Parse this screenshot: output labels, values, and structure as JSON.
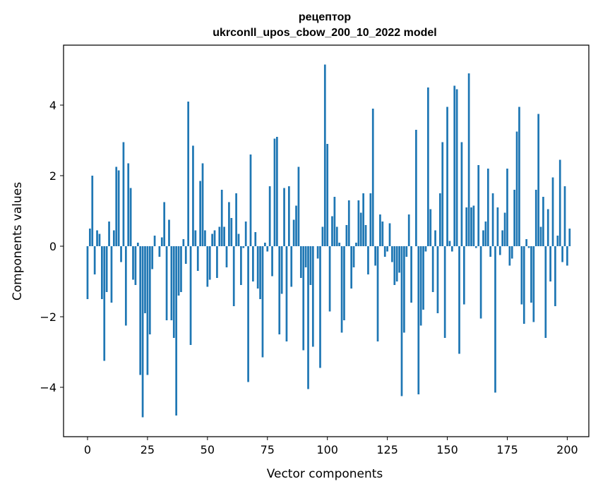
{
  "chart_data": {
    "type": "bar",
    "title": "рецептор",
    "subtitle": "ukrconll_upos_cbow_200_10_2022 model",
    "xlabel": "Vector components",
    "ylabel": "Components values",
    "xlim": [
      -10,
      209
    ],
    "ylim": [
      -5.4,
      5.7
    ],
    "x_ticks": [
      0,
      25,
      50,
      75,
      100,
      125,
      150,
      175,
      200
    ],
    "x_tick_labels": [
      "0",
      "25",
      "50",
      "75",
      "100",
      "125",
      "150",
      "175",
      "200"
    ],
    "y_ticks": [
      -4,
      -2,
      0,
      2,
      4
    ],
    "y_tick_labels": [
      "−4",
      "−2",
      "0",
      "2",
      "4"
    ],
    "grid": false,
    "bar_color": "#1f77b4",
    "values": [
      -1.5,
      0.5,
      2.0,
      -0.8,
      0.45,
      0.35,
      -1.5,
      -3.25,
      -1.3,
      0.7,
      -1.6,
      0.45,
      2.25,
      2.15,
      -0.45,
      2.95,
      -2.25,
      2.35,
      1.65,
      -0.95,
      -1.1,
      0.1,
      -3.65,
      -4.85,
      -1.9,
      -3.65,
      -2.5,
      -0.65,
      0.3,
      0.0,
      -0.3,
      0.25,
      1.25,
      -2.1,
      0.75,
      -2.1,
      -2.6,
      -4.8,
      -1.4,
      -1.3,
      0.2,
      -0.5,
      4.1,
      -2.8,
      2.85,
      0.45,
      -0.7,
      1.85,
      2.35,
      0.45,
      -1.15,
      -0.95,
      0.35,
      0.45,
      -0.9,
      0.55,
      1.6,
      0.55,
      -0.6,
      1.25,
      0.8,
      -1.7,
      1.5,
      0.35,
      -1.1,
      -0.05,
      0.7,
      -3.85,
      2.6,
      -1.0,
      0.4,
      -1.2,
      -1.5,
      -3.15,
      0.1,
      -0.15,
      1.7,
      -0.85,
      3.05,
      3.1,
      -2.5,
      -1.35,
      1.65,
      -2.7,
      1.7,
      -1.15,
      0.75,
      1.15,
      2.25,
      -0.9,
      -2.95,
      -0.6,
      -4.05,
      -1.1,
      -2.85,
      0.0,
      -0.35,
      -3.45,
      0.55,
      5.15,
      2.9,
      -1.85,
      0.85,
      1.4,
      0.55,
      0.1,
      -2.45,
      -2.1,
      0.6,
      1.3,
      -1.2,
      -0.6,
      0.1,
      1.3,
      0.95,
      1.5,
      0.6,
      -0.8,
      1.5,
      3.9,
      -0.55,
      -2.7,
      0.9,
      0.7,
      -0.3,
      -0.15,
      0.65,
      -0.45,
      -1.1,
      -1.0,
      -0.75,
      -4.25,
      -2.45,
      -0.3,
      0.9,
      -1.6,
      0.0,
      3.3,
      -4.2,
      -2.25,
      -1.8,
      -0.15,
      4.5,
      1.05,
      -1.3,
      0.45,
      -1.9,
      1.5,
      2.95,
      -2.6,
      3.95,
      0.15,
      -0.15,
      4.55,
      4.45,
      -3.05,
      2.95,
      -1.65,
      1.1,
      4.9,
      1.1,
      1.15,
      -0.05,
      2.3,
      -2.05,
      0.45,
      0.7,
      2.2,
      -0.3,
      1.5,
      -4.15,
      1.1,
      -0.25,
      0.45,
      0.95,
      2.2,
      -0.55,
      -0.35,
      1.6,
      3.25,
      3.95,
      -1.65,
      -2.2,
      0.2,
      -0.05,
      -1.6,
      -2.15,
      1.6,
      3.75,
      0.55,
      1.4,
      -2.6,
      1.05,
      -1.0,
      1.95,
      -1.7,
      0.3,
      2.45,
      -0.45,
      1.7,
      -0.55,
      0.5
    ]
  }
}
